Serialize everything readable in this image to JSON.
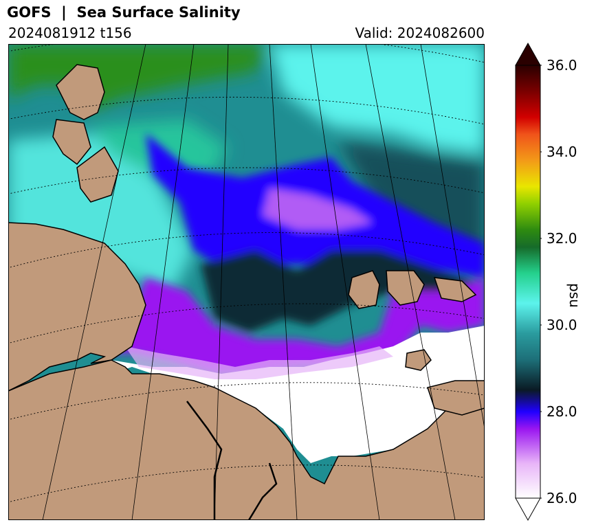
{
  "header": {
    "title": "GOFS  |  Sea Surface Salinity",
    "run": "2024081912 t156",
    "valid": "Valid: 2024082600"
  },
  "map": {
    "projection": "polar stereographic",
    "land_color": "#c19a7b",
    "ice_color": "#ffffff",
    "coast_color": "#000000"
  },
  "colorbar": {
    "unit": "psu",
    "ticks": [
      "26.0",
      "28.0",
      "30.0",
      "32.0",
      "34.0",
      "36.0"
    ],
    "min": 26.0,
    "max": 36.0,
    "extend": "both",
    "colors": {
      "low": "#ffffff",
      "purple": "#9a16f0",
      "blue": "#1f00ff",
      "dark": "#0a1a24",
      "teal": "#2a9b9e",
      "cyan": "#5cf3ec",
      "green": "#2e8b10",
      "yellow": "#e9e600",
      "orange": "#f39a18",
      "red": "#d20000",
      "high": "#2a0000"
    }
  }
}
